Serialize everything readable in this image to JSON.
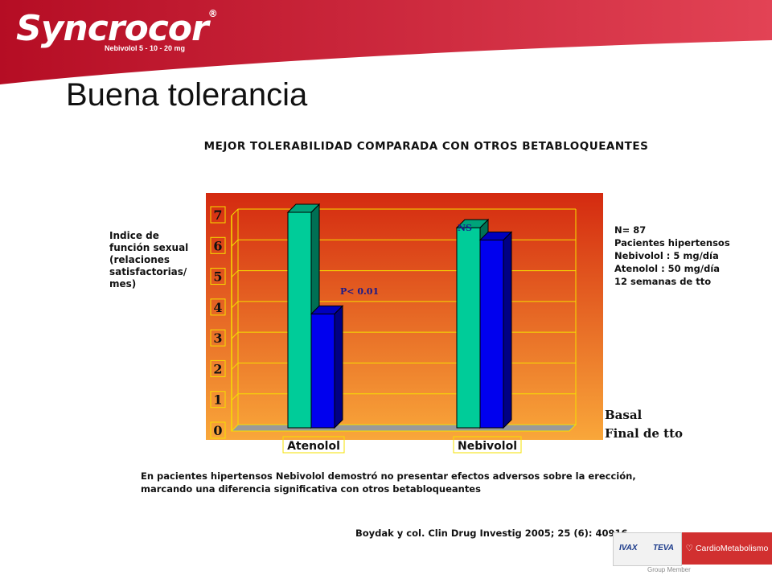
{
  "header": {
    "brand": "Syncrocor",
    "brand_registered": "®",
    "brand_sub": "Nebivolol 5 - 10 - 20 mg",
    "color_primary": "#c8152c",
    "color_secondary": "#e0404e"
  },
  "page_title": "Buena tolerancia",
  "subtitle": "MEJOR TOLERABILIDAD COMPARADA CON OTROS BETABLOQUEANTES",
  "y_axis_label": "Indice de\nfunción sexual\n(relaciones\nsatisfactorias/\nmes)",
  "info_lines": [
    "N= 87",
    "Pacientes hipertensos",
    "Nebivolol : 5 mg/día",
    "Atenolol : 50 mg/día",
    "12 semanas de tto"
  ],
  "chart_data": {
    "type": "bar",
    "categories": [
      "Atenolol",
      "Nebivolol"
    ],
    "series": [
      {
        "name": "Basal",
        "color": "#00cc99",
        "values": [
          7.0,
          6.5
        ]
      },
      {
        "name": "Final de tto",
        "color": "#0000ee",
        "values": [
          3.7,
          6.1
        ]
      }
    ],
    "annotations": [
      {
        "text": "P< 0.01",
        "category": "Atenolol"
      },
      {
        "text": "NS",
        "category": "Nebivolol"
      }
    ],
    "ylim": [
      0,
      7
    ],
    "y_ticks": [
      "0",
      "1",
      "2",
      "3",
      "4",
      "5",
      "6",
      "7"
    ],
    "grid": true,
    "legend_position": "bottom-right",
    "background_gradient": [
      "#f9a73a",
      "#d42a10"
    ]
  },
  "footnote_lines": [
    "En pacientes hipertensos Nebivolol  demostró no presentar efectos adversos sobre la erección,",
    "marcando una diferencia significativa  con otros betabloqueantes"
  ],
  "reference": "Boydak y col. Clin Drug Investig 2005; 25 (6): 40916",
  "footer_brands": {
    "brand1": "IVAX",
    "brand2": "TEVA",
    "brand3": "CardioMetabolismo",
    "group_member": "Group Member"
  }
}
